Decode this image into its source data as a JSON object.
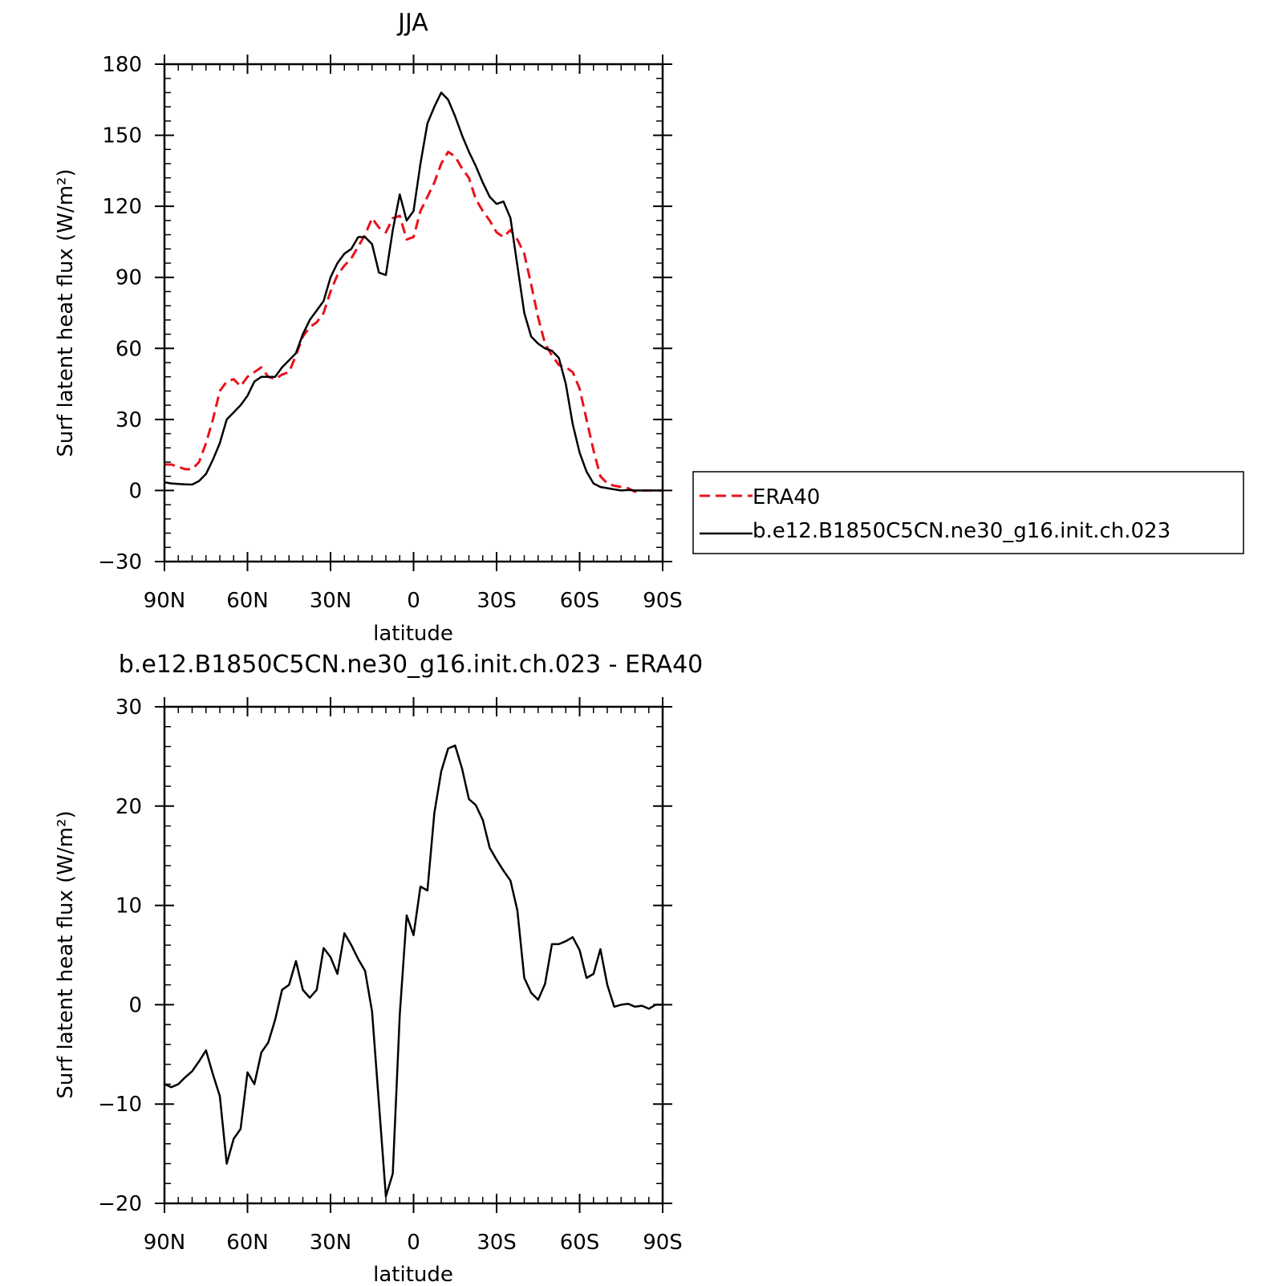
{
  "chart_data": [
    {
      "type": "line",
      "title": "JJA",
      "xlabel": "latitude",
      "ylabel": "Surf latent heat flux (W/m²)",
      "xlim": [
        90,
        -90
      ],
      "ylim": [
        -30,
        180
      ],
      "x_ticks": [
        90,
        60,
        30,
        0,
        -30,
        -60,
        -90
      ],
      "x_tick_labels": [
        "90N",
        "60N",
        "30N",
        "0",
        "30S",
        "60S",
        "90S"
      ],
      "y_ticks": [
        -30,
        0,
        30,
        60,
        90,
        120,
        150,
        180
      ],
      "y_tick_labels": [
        "-30",
        "0",
        "30",
        "60",
        "90",
        "120",
        "150",
        "180"
      ],
      "legend_position": "right",
      "grid": false,
      "series": [
        {
          "name": "ERA40",
          "color": "#e8121b",
          "dash": "dashed",
          "x": [
            90,
            87.5,
            85,
            82.5,
            80,
            77.5,
            75,
            72.5,
            70,
            67.5,
            65,
            62.5,
            60,
            57.5,
            55,
            52.5,
            50,
            47.5,
            45,
            42.5,
            40,
            37.5,
            35,
            32.5,
            30,
            27.5,
            25,
            22.5,
            20,
            17.5,
            15,
            12.5,
            10,
            7.5,
            5,
            2.5,
            0,
            -2.5,
            -5,
            -7.5,
            -10,
            -12.5,
            -15,
            -17.5,
            -20,
            -22.5,
            -25,
            -27.5,
            -30,
            -32.5,
            -35,
            -37.5,
            -40,
            -42.5,
            -45,
            -47.5,
            -50,
            -52.5,
            -55,
            -57.5,
            -60,
            -62.5,
            -65,
            -67.5,
            -70,
            -72.5,
            -75,
            -77.5,
            -80,
            -82.5,
            -85,
            -87.5,
            -90
          ],
          "values": [
            11,
            11,
            10,
            9,
            9,
            12,
            20,
            30,
            42,
            46,
            47,
            44,
            48,
            50,
            52,
            48,
            47,
            49,
            50,
            57,
            65,
            69,
            71,
            75,
            84,
            91,
            95,
            98,
            103,
            108,
            115,
            111,
            109,
            115,
            116,
            106,
            107,
            118,
            124,
            130,
            138,
            143,
            141,
            136,
            132,
            123,
            118,
            114,
            109,
            107,
            110,
            106,
            100,
            87,
            73,
            62,
            57,
            53,
            52,
            50,
            43,
            30,
            17,
            6,
            3,
            2,
            1.5,
            1,
            -0.5,
            0,
            0,
            0,
            0
          ]
        },
        {
          "name": "b.e12.B1850C5CN.ne30_g16.init.ch.023",
          "color": "#000000",
          "dash": "solid",
          "x": [
            90,
            87.5,
            85,
            82.5,
            80,
            77.5,
            75,
            72.5,
            70,
            67.5,
            65,
            62.5,
            60,
            57.5,
            55,
            52.5,
            50,
            47.5,
            45,
            42.5,
            40,
            37.5,
            35,
            32.5,
            30,
            27.5,
            25,
            22.5,
            20,
            17.5,
            15,
            12.5,
            10,
            7.5,
            5,
            2.5,
            0,
            -2.5,
            -5,
            -7.5,
            -10,
            -12.5,
            -15,
            -17.5,
            -20,
            -22.5,
            -25,
            -27.5,
            -30,
            -32.5,
            -35,
            -37.5,
            -40,
            -42.5,
            -45,
            -47.5,
            -50,
            -52.5,
            -55,
            -57.5,
            -60,
            -62.5,
            -65,
            -67.5,
            -70,
            -72.5,
            -75,
            -77.5,
            -80,
            -82.5,
            -85,
            -87.5,
            -90
          ],
          "values": [
            3.5,
            3,
            2.8,
            2.6,
            2.5,
            4,
            7,
            13,
            20,
            30,
            33,
            36,
            40,
            46,
            48,
            48,
            48,
            52,
            55,
            58,
            66,
            72,
            76,
            80,
            90,
            96,
            100,
            102,
            107,
            107,
            104,
            92,
            91,
            110,
            125,
            114,
            118,
            138,
            155,
            162,
            168,
            165,
            158,
            150,
            143,
            137,
            130,
            124,
            121,
            122,
            115,
            95,
            75,
            65,
            62,
            60,
            59,
            56,
            45,
            28,
            16,
            8,
            3,
            1.5,
            1,
            0.5,
            0,
            0.2,
            0,
            0,
            0,
            0,
            0
          ]
        }
      ]
    },
    {
      "type": "line",
      "title": "b.e12.B1850C5CN.ne30_g16.init.ch.023 - ERA40",
      "xlabel": "latitude",
      "ylabel": "Surf latent heat flux (W/m²)",
      "xlim": [
        90,
        -90
      ],
      "ylim": [
        -20,
        30
      ],
      "x_ticks": [
        90,
        60,
        30,
        0,
        -30,
        -60,
        -90
      ],
      "x_tick_labels": [
        "90N",
        "60N",
        "30N",
        "0",
        "30S",
        "60S",
        "90S"
      ],
      "y_ticks": [
        -20,
        -10,
        0,
        10,
        20,
        30
      ],
      "y_tick_labels": [
        "-20",
        "-10",
        "0",
        "10",
        "20",
        "30"
      ],
      "grid": false,
      "series": [
        {
          "color": "#000000",
          "dash": "solid",
          "x": [
            90,
            87.5,
            85,
            82.5,
            80,
            77.5,
            75,
            72.5,
            70,
            67.5,
            65,
            62.5,
            60,
            57.5,
            55,
            52.5,
            50,
            47.5,
            45,
            42.5,
            40,
            37.5,
            35,
            32.5,
            30,
            27.5,
            25,
            22.5,
            20,
            17.5,
            15,
            12.5,
            10,
            7.5,
            5,
            2.5,
            0,
            -2.5,
            -5,
            -7.5,
            -10,
            -12.5,
            -15,
            -17.5,
            -20,
            -22.5,
            -25,
            -27.5,
            -30,
            -32.5,
            -35,
            -37.5,
            -40,
            -42.5,
            -45,
            -47.5,
            -50,
            -52.5,
            -55,
            -57.5,
            -60,
            -62.5,
            -65,
            -67.5,
            -70,
            -72.5,
            -75,
            -77.5,
            -80,
            -82.5,
            -85,
            -87.5,
            -90
          ],
          "values": [
            -8,
            -8.3,
            -8,
            -7.3,
            -6.7,
            -5.7,
            -4.6,
            -7,
            -9.2,
            -16,
            -13.5,
            -12.5,
            -6.8,
            -8,
            -4.8,
            -3.8,
            -1.5,
            1.5,
            2,
            4.4,
            1.5,
            0.7,
            1.5,
            5.7,
            4.8,
            3.1,
            7.2,
            6,
            4.6,
            3.4,
            -0.7,
            -10,
            -19.3,
            -17,
            -1,
            9,
            7,
            11.9,
            11.5,
            19.3,
            23.5,
            25.8,
            26.1,
            23.8,
            20.7,
            20.1,
            18.6,
            15.8,
            14.6,
            13.5,
            12.5,
            9.5,
            2.7,
            1.2,
            0.5,
            2.1,
            6.1,
            6.1,
            6.4,
            6.8,
            5.5,
            2.7,
            3.1,
            5.6,
            2,
            -0.2,
            0,
            0.1,
            -0.2,
            -0.1,
            -0.4,
            0,
            0
          ]
        }
      ]
    }
  ]
}
